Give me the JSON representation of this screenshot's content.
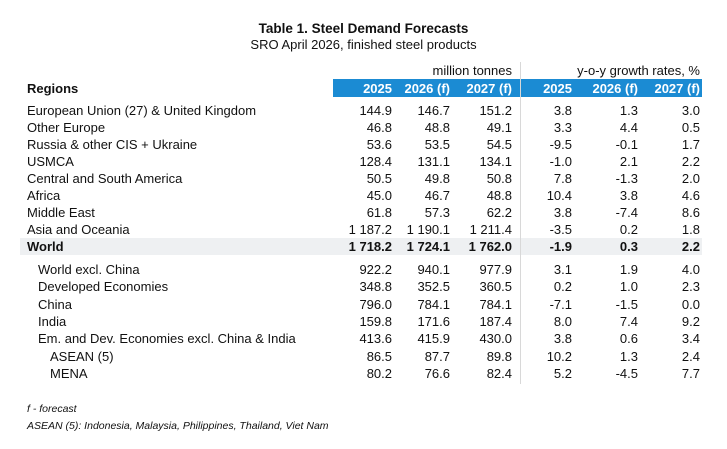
{
  "header": {
    "title": "Table 1. Steel Demand Forecasts",
    "subtitle": "SRO April 2026, finished steel products"
  },
  "table": {
    "row_header": "Regions",
    "group_headers": [
      "million tonnes",
      "y-o-y growth rates, %"
    ],
    "columns": [
      "2025",
      "2026 (f)",
      "2027 (f)",
      "2025",
      "2026 (f)",
      "2027 (f)"
    ],
    "rows": [
      [
        "European Union (27) & United Kingdom",
        "144.9",
        "146.7",
        "151.2",
        "3.8",
        "1.3",
        "3.0"
      ],
      [
        "Other Europe",
        "46.8",
        "48.8",
        "49.1",
        "3.3",
        "4.4",
        "0.5"
      ],
      [
        "Russia & other CIS + Ukraine",
        "53.6",
        "53.5",
        "54.5",
        "-9.5",
        "-0.1",
        "1.7"
      ],
      [
        "USMCA",
        "128.4",
        "131.1",
        "134.1",
        "-1.0",
        "2.1",
        "2.2"
      ],
      [
        "Central and South America",
        "50.5",
        "49.8",
        "50.8",
        "7.8",
        "-1.3",
        "2.0"
      ],
      [
        "Africa",
        "45.0",
        "46.7",
        "48.8",
        "10.4",
        "3.8",
        "4.6"
      ],
      [
        "Middle East",
        "61.8",
        "57.3",
        "62.2",
        "3.8",
        "-7.4",
        "8.6"
      ],
      [
        "Asia and Oceania",
        "1 187.2",
        "1 190.1",
        "1 211.4",
        "-3.5",
        "0.2",
        "1.8"
      ]
    ],
    "total_row": [
      "World",
      "1 718.2",
      "1 724.1",
      "1 762.0",
      "-1.9",
      "0.3",
      "2.2"
    ],
    "sub_rows": [
      [
        "World excl. China",
        "922.2",
        "940.1",
        "977.9",
        "3.1",
        "1.9",
        "4.0"
      ],
      [
        "Developed Economies",
        "348.8",
        "352.5",
        "360.5",
        "0.2",
        "1.0",
        "2.3"
      ],
      [
        "China",
        "796.0",
        "784.1",
        "784.1",
        "-7.1",
        "-1.5",
        "0.0"
      ],
      [
        "India",
        "159.8",
        "171.6",
        "187.4",
        "8.0",
        "7.4",
        "9.2"
      ],
      [
        "Em. and Dev. Economies excl. China & India",
        "413.6",
        "415.9",
        "430.0",
        "3.8",
        "0.6",
        "3.4"
      ],
      [
        "ASEAN (5)",
        "86.5",
        "87.7",
        "89.8",
        "10.2",
        "1.3",
        "2.4"
      ],
      [
        "MENA",
        "80.2",
        "76.6",
        "82.4",
        "5.2",
        "-4.5",
        "7.7"
      ]
    ]
  },
  "footnotes": [
    "f - forecast",
    "ASEAN (5): Indonesia, Malaysia, Philippines, Thailand, Viet Nam"
  ]
}
